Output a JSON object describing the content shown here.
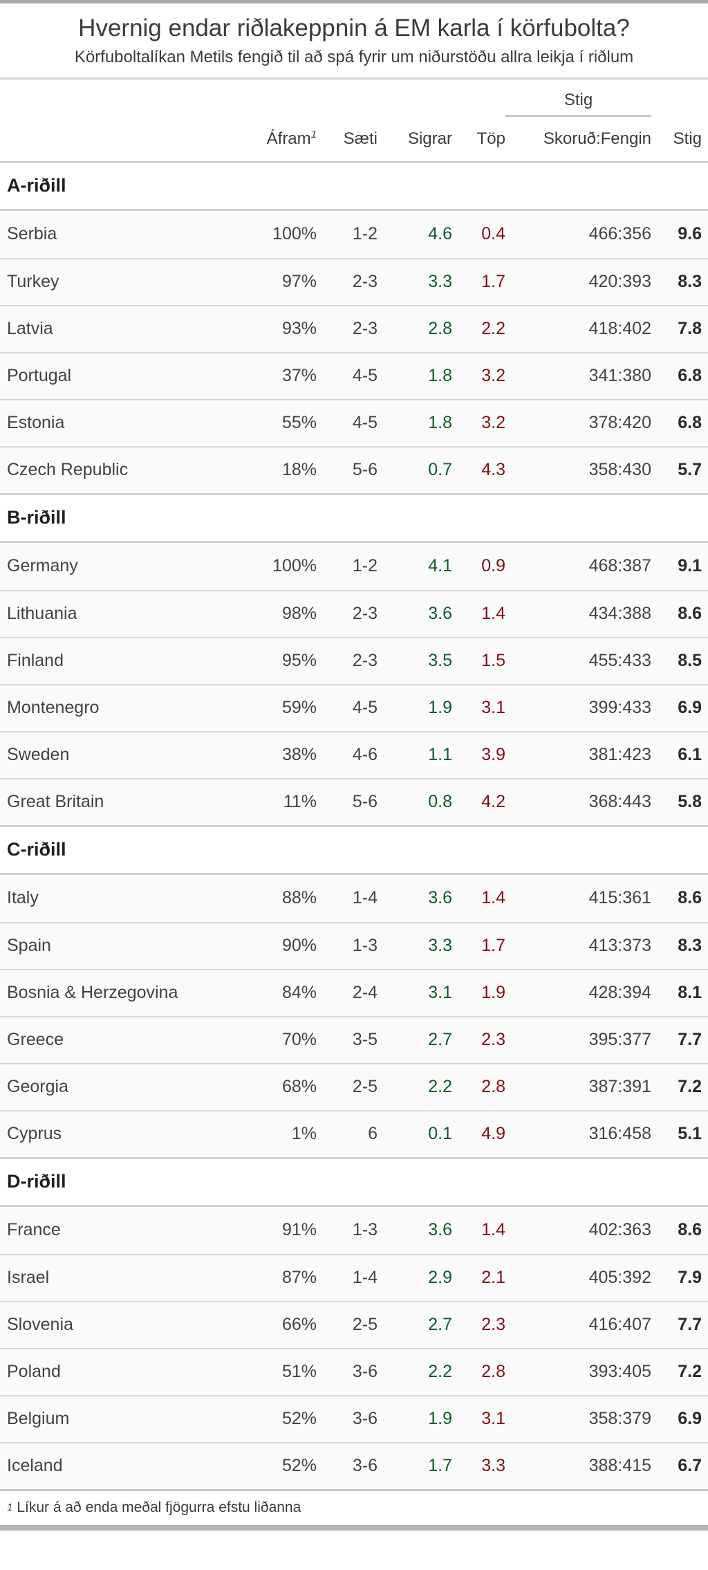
{
  "page": {
    "title": "Hvernig endar riðlakeppnin á EM karla í körfubolta?",
    "subtitle": "Körfuboltalíkan Metils fengið til að spá fyrir um niðurstöðu allra leikja í riðlum"
  },
  "colors": {
    "wins_green": "#0d5b28",
    "losses_red": "#7e1016",
    "row_background": "#fafafa",
    "divider_gray": "#d2d2d2",
    "bottom_bar_gray": "#b4b4b4"
  },
  "chart_data": {
    "type": "table",
    "title": "Hvernig endar riðlakeppnin á EM karla í körfubolta?",
    "subtitle": "Körfuboltalíkan Metils fengið til að spá fyrir um niðurstöðu allra leikja í riðlum",
    "points_group_label": "Stig",
    "column_labels": {
      "afram": "Áfram",
      "afram_footnote_marker": "1",
      "saeti": "Sæti",
      "sigrar": "Sigrar",
      "top": "Töp",
      "skorud": "Skoruð:Fengin",
      "stig": "Stig"
    },
    "groups": [
      {
        "name": "A-riðill",
        "rows": [
          {
            "team": "Serbia",
            "afram": "100%",
            "saeti": "1-2",
            "sigrar": "4.6",
            "top": "0.4",
            "skorud": "466:356",
            "stig": "9.6"
          },
          {
            "team": "Turkey",
            "afram": "97%",
            "saeti": "2-3",
            "sigrar": "3.3",
            "top": "1.7",
            "skorud": "420:393",
            "stig": "8.3"
          },
          {
            "team": "Latvia",
            "afram": "93%",
            "saeti": "2-3",
            "sigrar": "2.8",
            "top": "2.2",
            "skorud": "418:402",
            "stig": "7.8"
          },
          {
            "team": "Portugal",
            "afram": "37%",
            "saeti": "4-5",
            "sigrar": "1.8",
            "top": "3.2",
            "skorud": "341:380",
            "stig": "6.8"
          },
          {
            "team": "Estonia",
            "afram": "55%",
            "saeti": "4-5",
            "sigrar": "1.8",
            "top": "3.2",
            "skorud": "378:420",
            "stig": "6.8"
          },
          {
            "team": "Czech Republic",
            "afram": "18%",
            "saeti": "5-6",
            "sigrar": "0.7",
            "top": "4.3",
            "skorud": "358:430",
            "stig": "5.7"
          }
        ]
      },
      {
        "name": "B-riðill",
        "rows": [
          {
            "team": "Germany",
            "afram": "100%",
            "saeti": "1-2",
            "sigrar": "4.1",
            "top": "0.9",
            "skorud": "468:387",
            "stig": "9.1"
          },
          {
            "team": "Lithuania",
            "afram": "98%",
            "saeti": "2-3",
            "sigrar": "3.6",
            "top": "1.4",
            "skorud": "434:388",
            "stig": "8.6"
          },
          {
            "team": "Finland",
            "afram": "95%",
            "saeti": "2-3",
            "sigrar": "3.5",
            "top": "1.5",
            "skorud": "455:433",
            "stig": "8.5"
          },
          {
            "team": "Montenegro",
            "afram": "59%",
            "saeti": "4-5",
            "sigrar": "1.9",
            "top": "3.1",
            "skorud": "399:433",
            "stig": "6.9"
          },
          {
            "team": "Sweden",
            "afram": "38%",
            "saeti": "4-6",
            "sigrar": "1.1",
            "top": "3.9",
            "skorud": "381:423",
            "stig": "6.1"
          },
          {
            "team": "Great Britain",
            "afram": "11%",
            "saeti": "5-6",
            "sigrar": "0.8",
            "top": "4.2",
            "skorud": "368:443",
            "stig": "5.8"
          }
        ]
      },
      {
        "name": "C-riðill",
        "rows": [
          {
            "team": "Italy",
            "afram": "88%",
            "saeti": "1-4",
            "sigrar": "3.6",
            "top": "1.4",
            "skorud": "415:361",
            "stig": "8.6"
          },
          {
            "team": "Spain",
            "afram": "90%",
            "saeti": "1-3",
            "sigrar": "3.3",
            "top": "1.7",
            "skorud": "413:373",
            "stig": "8.3"
          },
          {
            "team": "Bosnia & Herzegovina",
            "afram": "84%",
            "saeti": "2-4",
            "sigrar": "3.1",
            "top": "1.9",
            "skorud": "428:394",
            "stig": "8.1"
          },
          {
            "team": "Greece",
            "afram": "70%",
            "saeti": "3-5",
            "sigrar": "2.7",
            "top": "2.3",
            "skorud": "395:377",
            "stig": "7.7"
          },
          {
            "team": "Georgia",
            "afram": "68%",
            "saeti": "2-5",
            "sigrar": "2.2",
            "top": "2.8",
            "skorud": "387:391",
            "stig": "7.2"
          },
          {
            "team": "Cyprus",
            "afram": "1%",
            "saeti": "6",
            "sigrar": "0.1",
            "top": "4.9",
            "skorud": "316:458",
            "stig": "5.1"
          }
        ]
      },
      {
        "name": "D-riðill",
        "rows": [
          {
            "team": "France",
            "afram": "91%",
            "saeti": "1-3",
            "sigrar": "3.6",
            "top": "1.4",
            "skorud": "402:363",
            "stig": "8.6"
          },
          {
            "team": "Israel",
            "afram": "87%",
            "saeti": "1-4",
            "sigrar": "2.9",
            "top": "2.1",
            "skorud": "405:392",
            "stig": "7.9"
          },
          {
            "team": "Slovenia",
            "afram": "66%",
            "saeti": "2-5",
            "sigrar": "2.7",
            "top": "2.3",
            "skorud": "416:407",
            "stig": "7.7"
          },
          {
            "team": "Poland",
            "afram": "51%",
            "saeti": "3-6",
            "sigrar": "2.2",
            "top": "2.8",
            "skorud": "393:405",
            "stig": "7.2"
          },
          {
            "team": "Belgium",
            "afram": "52%",
            "saeti": "3-6",
            "sigrar": "1.9",
            "top": "3.1",
            "skorud": "358:379",
            "stig": "6.9"
          },
          {
            "team": "Iceland",
            "afram": "52%",
            "saeti": "3-6",
            "sigrar": "1.7",
            "top": "3.3",
            "skorud": "388:415",
            "stig": "6.7"
          }
        ]
      }
    ],
    "footnote": {
      "marker": "1",
      "text": "Líkur á að enda meðal fjögurra efstu liðanna"
    }
  }
}
